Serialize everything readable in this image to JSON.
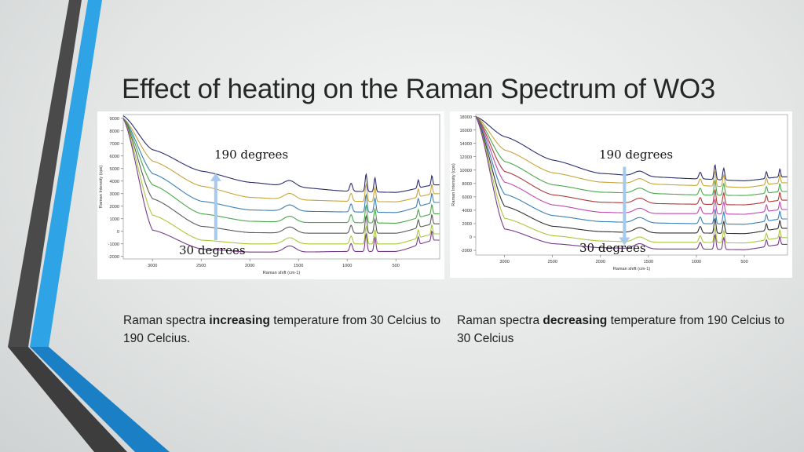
{
  "slide": {
    "title": "Effect of heating on the Raman Spectrum of WO3",
    "colors": {
      "stripe_dark": "#4a4a4a",
      "stripe_blue": "#2ea3e6",
      "stripe_blue_dark": "#1a7fc4",
      "arrow": "#a6c9ec"
    }
  },
  "left": {
    "label_top": "190 degrees",
    "label_bottom": "30 degrees",
    "caption": {
      "prefix": "Raman spectra ",
      "emphasis": "increasing",
      "suffix": " temperature from 30 Celcius to 190 Celcius."
    }
  },
  "right": {
    "label_top": "190 degrees",
    "label_bottom": "30 degrees",
    "caption": {
      "prefix": "Raman spectra ",
      "emphasis": "decreasing",
      "suffix": " temperature from 190 Celcius to 30 Celcius"
    }
  },
  "chart_data": [
    {
      "type": "line",
      "xlabel": "Raman shift (cm-1)",
      "ylabel": "Raman Intensity (cps)",
      "x_reversed": true,
      "xlim": [
        3300,
        50
      ],
      "ylim": [
        -2200,
        9300
      ],
      "xticks": [
        3000,
        2500,
        2000,
        1500,
        1000,
        500
      ],
      "yticks": [
        9000,
        8000,
        7000,
        6000,
        5000,
        4000,
        3000,
        2000,
        1000,
        0,
        -1000,
        -2000
      ],
      "arrow": {
        "x": 2350,
        "from": -700,
        "to": 4500,
        "direction": "up"
      },
      "series": [
        {
          "color": "#2b2d6e",
          "values": [
            [
              3300,
              9200
            ],
            [
              3000,
              6500
            ],
            [
              2500,
              4800
            ],
            [
              2000,
              3900
            ],
            [
              1500,
              3500
            ],
            [
              1000,
              3200
            ],
            [
              500,
              3100
            ],
            [
              100,
              3700
            ]
          ]
        },
        {
          "color": "#c9a43a",
          "values": [
            [
              3300,
              9000
            ],
            [
              3000,
              5600
            ],
            [
              2500,
              3600
            ],
            [
              2000,
              2700
            ],
            [
              1500,
              2500
            ],
            [
              1000,
              2400
            ],
            [
              500,
              2350
            ],
            [
              100,
              3000
            ]
          ]
        },
        {
          "color": "#3a7fb5",
          "values": [
            [
              3300,
              9000
            ],
            [
              3000,
              4600
            ],
            [
              2500,
              2400
            ],
            [
              2000,
              1700
            ],
            [
              1500,
              1600
            ],
            [
              1000,
              1550
            ],
            [
              500,
              1500
            ],
            [
              100,
              2300
            ]
          ]
        },
        {
          "color": "#4aa84a",
          "values": [
            [
              3300,
              9000
            ],
            [
              3000,
              3700
            ],
            [
              2500,
              1400
            ],
            [
              2000,
              800
            ],
            [
              1500,
              700
            ],
            [
              1000,
              700
            ],
            [
              500,
              650
            ],
            [
              100,
              1400
            ]
          ]
        },
        {
          "color": "#5a5a5a",
          "values": [
            [
              3300,
              9000
            ],
            [
              3000,
              2600
            ],
            [
              2500,
              400
            ],
            [
              2000,
              -100
            ],
            [
              1500,
              -150
            ],
            [
              1000,
              -150
            ],
            [
              500,
              -150
            ],
            [
              100,
              600
            ]
          ]
        },
        {
          "color": "#a8c838",
          "values": [
            [
              3300,
              9000
            ],
            [
              3000,
              1300
            ],
            [
              2500,
              -700
            ],
            [
              2000,
              -1000
            ],
            [
              1500,
              -1000
            ],
            [
              1000,
              -1000
            ],
            [
              500,
              -1000
            ],
            [
              100,
              -200
            ]
          ]
        },
        {
          "color": "#7a3a8a",
          "values": [
            [
              3300,
              9000
            ],
            [
              3000,
              100
            ],
            [
              2500,
              -1400
            ],
            [
              2000,
              -1650
            ],
            [
              1500,
              -1650
            ],
            [
              1000,
              -1600
            ],
            [
              500,
              -1600
            ],
            [
              100,
              -700
            ]
          ]
        }
      ]
    },
    {
      "type": "line",
      "xlabel": "Raman shift (cm-1)",
      "ylabel": "Raman Intensity (cps)",
      "x_reversed": true,
      "xlim": [
        3300,
        50
      ],
      "ylim": [
        -2700,
        18300
      ],
      "xticks": [
        3000,
        2500,
        2000,
        1500,
        1000,
        500
      ],
      "yticks": [
        18000,
        16000,
        14000,
        12000,
        10000,
        8000,
        6000,
        4000,
        2000,
        0,
        -2000
      ],
      "arrow": {
        "x": 1750,
        "from": 10500,
        "to": -1000,
        "direction": "down"
      },
      "series": [
        {
          "color": "#2b2d6e",
          "values": [
            [
              3300,
              18000
            ],
            [
              3000,
              15000
            ],
            [
              2500,
              11500
            ],
            [
              2000,
              9500
            ],
            [
              1500,
              9000
            ],
            [
              1000,
              8700
            ],
            [
              500,
              8400
            ],
            [
              100,
              9000
            ]
          ]
        },
        {
          "color": "#c9a43a",
          "values": [
            [
              3300,
              18000
            ],
            [
              3000,
              13000
            ],
            [
              2500,
              9600
            ],
            [
              2000,
              8200
            ],
            [
              1500,
              7900
            ],
            [
              1000,
              7700
            ],
            [
              500,
              7400
            ],
            [
              100,
              8100
            ]
          ]
        },
        {
          "color": "#4aa84a",
          "values": [
            [
              3300,
              18000
            ],
            [
              3000,
              11300
            ],
            [
              2500,
              7800
            ],
            [
              2000,
              6700
            ],
            [
              1500,
              6500
            ],
            [
              1000,
              6300
            ],
            [
              500,
              6200
            ],
            [
              100,
              6800
            ]
          ]
        },
        {
          "color": "#b03a3a",
          "values": [
            [
              3300,
              18000
            ],
            [
              3000,
              9800
            ],
            [
              2500,
              6300
            ],
            [
              2000,
              5200
            ],
            [
              1500,
              5000
            ],
            [
              1000,
              4900
            ],
            [
              500,
              4800
            ],
            [
              100,
              5500
            ]
          ]
        },
        {
          "color": "#c04ab0",
          "values": [
            [
              3300,
              18000
            ],
            [
              3000,
              8200
            ],
            [
              2500,
              4800
            ],
            [
              2000,
              3700
            ],
            [
              1500,
              3500
            ],
            [
              1000,
              3500
            ],
            [
              500,
              3400
            ],
            [
              100,
              4100
            ]
          ]
        },
        {
          "color": "#3a7fb5",
          "values": [
            [
              3300,
              18000
            ],
            [
              3000,
              6400
            ],
            [
              2500,
              3200
            ],
            [
              2000,
              2300
            ],
            [
              1500,
              2100
            ],
            [
              1000,
              2000
            ],
            [
              500,
              1900
            ],
            [
              100,
              2700
            ]
          ]
        },
        {
          "color": "#333333",
          "values": [
            [
              3300,
              18000
            ],
            [
              3000,
              4600
            ],
            [
              2500,
              1600
            ],
            [
              2000,
              800
            ],
            [
              1500,
              600
            ],
            [
              1000,
              600
            ],
            [
              500,
              500
            ],
            [
              100,
              1300
            ]
          ]
        },
        {
          "color": "#a8c838",
          "values": [
            [
              3300,
              18000
            ],
            [
              3000,
              2800
            ],
            [
              2500,
              200
            ],
            [
              2000,
              -600
            ],
            [
              1500,
              -800
            ],
            [
              1000,
              -800
            ],
            [
              500,
              -900
            ],
            [
              100,
              -100
            ]
          ]
        },
        {
          "color": "#7a3a8a",
          "values": [
            [
              3300,
              18000
            ],
            [
              3000,
              1200
            ],
            [
              2500,
              -1000
            ],
            [
              2000,
              -1600
            ],
            [
              1500,
              -1800
            ],
            [
              1000,
              -1800
            ],
            [
              500,
              -1900
            ],
            [
              100,
              -1100
            ]
          ]
        }
      ]
    }
  ]
}
